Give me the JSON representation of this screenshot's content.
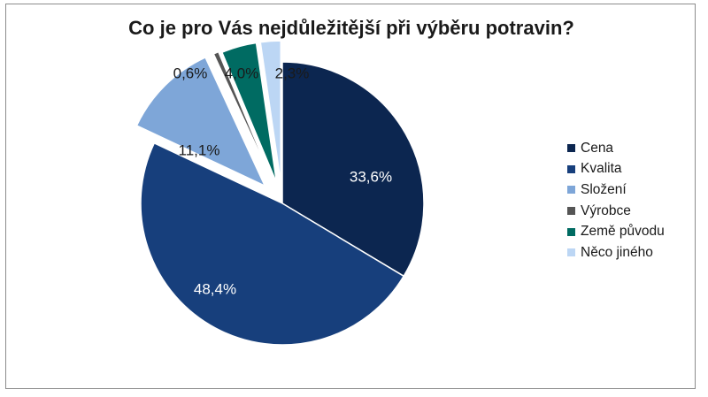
{
  "chart_data": {
    "type": "pie",
    "title": "Co je pro Vás nejdůležitější při výběru potravin?",
    "slices": [
      {
        "name": "Cena",
        "value": 33.6,
        "label": "33,6%",
        "color": "#0c2650",
        "label_color": "#ffffff"
      },
      {
        "name": "Kvalita",
        "value": 48.4,
        "label": "48,4%",
        "color": "#173f7c",
        "label_color": "#ffffff"
      },
      {
        "name": "Složení",
        "value": 11.1,
        "label": "11,1%",
        "color": "#7ea6d8",
        "label_color": "#1a1a1a"
      },
      {
        "name": "Výrobce",
        "value": 0.6,
        "label": "0,6%",
        "color": "#555555",
        "label_color": "#1a1a1a"
      },
      {
        "name": "Země původu",
        "value": 4.0,
        "label": "4,0%",
        "color": "#006b62",
        "label_color": "#1a1a1a"
      },
      {
        "name": "Něco jiného",
        "value": 2.3,
        "label": "2,3%",
        "color": "#bcd6f4",
        "label_color": "#1a1a1a"
      }
    ],
    "legend_position": "right"
  }
}
